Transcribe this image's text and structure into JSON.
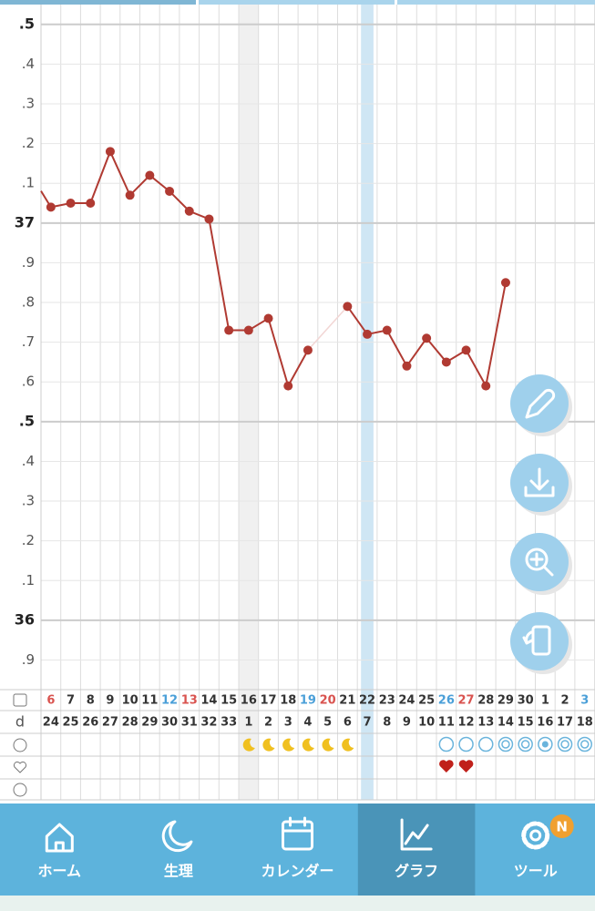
{
  "chart_data": {
    "type": "line",
    "categories": [
      "6",
      "7",
      "8",
      "9",
      "10",
      "11",
      "12",
      "13",
      "14",
      "15",
      "16",
      "17",
      "18",
      "19",
      "20",
      "21",
      "22",
      "23",
      "24",
      "25",
      "26",
      "27",
      "28",
      "29",
      "30",
      "1",
      "2",
      "3"
    ],
    "category_colors": [
      "#d9534f",
      "#333",
      "#333",
      "#333",
      "#333",
      "#333",
      "#4a9fd8",
      "#d9534f",
      "#333",
      "#333",
      "#333",
      "#333",
      "#333",
      "#4a9fd8",
      "#d9534f",
      "#333",
      "#333",
      "#333",
      "#333",
      "#333",
      "#4a9fd8",
      "#d9534f",
      "#333",
      "#333",
      "#333",
      "#333",
      "#333",
      "#4a9fd8"
    ],
    "cycle_days": [
      "24",
      "25",
      "26",
      "27",
      "28",
      "29",
      "30",
      "31",
      "32",
      "33",
      "1",
      "2",
      "3",
      "4",
      "5",
      "6",
      "7",
      "8",
      "9",
      "10",
      "11",
      "12",
      "13",
      "14",
      "15",
      "16",
      "17",
      "18"
    ],
    "row_label": "d",
    "series": [
      {
        "color": "#b03a32",
        "values": [
          37.04,
          37.05,
          37.05,
          37.18,
          37.07,
          37.12,
          37.08,
          37.03,
          37.01,
          36.73,
          36.73,
          36.76,
          36.59,
          36.68,
          null,
          36.79,
          36.72,
          36.73,
          36.64,
          36.71,
          36.65,
          36.68,
          36.59,
          36.85,
          null,
          null,
          null,
          null
        ]
      }
    ],
    "ylim": [
      35.83,
      37.55
    ],
    "yticks": [
      {
        "value": 37.5,
        "label": ".5"
      },
      {
        "value": 37.4,
        "label": ".4"
      },
      {
        "value": 37.3,
        "label": ".3"
      },
      {
        "value": 37.2,
        "label": ".2"
      },
      {
        "value": 37.1,
        "label": ".1"
      },
      37,
      {
        "value": 36.9,
        "label": ".9"
      },
      {
        "value": 36.8,
        "label": ".8"
      },
      {
        "value": 36.7,
        "label": ".7"
      },
      {
        "value": 36.6,
        "label": ".6"
      },
      {
        "value": 36.5,
        "label": ".5"
      },
      {
        "value": 36.4,
        "label": ".4"
      },
      {
        "value": 36.3,
        "label": ".3"
      },
      {
        "value": 36.2,
        "label": ".2"
      },
      {
        "value": 36.1,
        "label": ".1"
      },
      36,
      {
        "value": 35.9,
        "label": ".9"
      }
    ],
    "grid": true
  },
  "nav": {
    "tabs": [
      "ホーム",
      "生理",
      "カレンダー",
      "グラフ",
      "ツール"
    ],
    "active": 3,
    "badge": "N"
  }
}
